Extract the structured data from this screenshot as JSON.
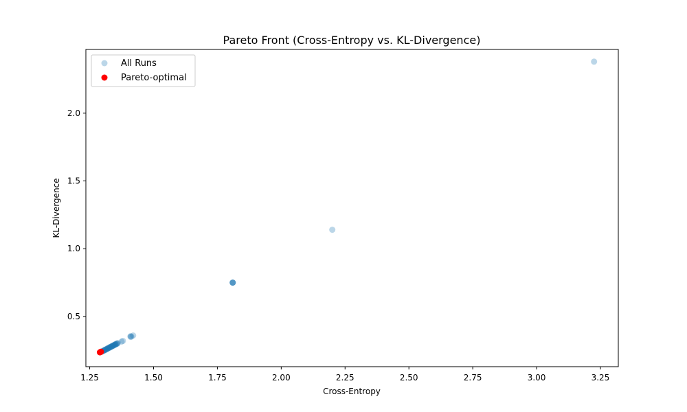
{
  "chart_data": {
    "type": "scatter",
    "title": "Pareto Front (Cross-Entropy vs. KL-Divergence)",
    "xlabel": "Cross-Entropy",
    "ylabel": "KL-Divergence",
    "xlim": [
      1.235,
      3.32
    ],
    "ylim": [
      0.13,
      2.47
    ],
    "xticks": [
      1.25,
      1.5,
      1.75,
      2.0,
      2.25,
      2.5,
      2.75,
      3.0,
      3.25
    ],
    "xtick_labels": [
      "1.25",
      "1.50",
      "1.75",
      "2.00",
      "2.25",
      "2.50",
      "2.75",
      "3.00",
      "3.25"
    ],
    "yticks": [
      0.5,
      1.0,
      1.5,
      2.0
    ],
    "ytick_labels": [
      "0.5",
      "1.0",
      "1.5",
      "2.0"
    ],
    "grid": false,
    "legend_position": "top-left",
    "series": [
      {
        "name": "All Runs",
        "color": "#1f77b4",
        "alpha": 0.3,
        "points": [
          [
            3.225,
            2.38
          ],
          [
            2.2,
            1.14
          ],
          [
            1.81,
            0.75
          ],
          [
            1.81,
            0.75
          ],
          [
            1.81,
            0.75
          ],
          [
            1.81,
            0.75
          ],
          [
            1.42,
            0.36
          ],
          [
            1.41,
            0.355
          ],
          [
            1.41,
            0.35
          ],
          [
            1.413,
            0.352
          ],
          [
            1.38,
            0.32
          ],
          [
            1.375,
            0.315
          ],
          [
            1.36,
            0.305
          ],
          [
            1.358,
            0.3
          ],
          [
            1.355,
            0.298
          ],
          [
            1.352,
            0.295
          ],
          [
            1.35,
            0.293
          ],
          [
            1.348,
            0.291
          ],
          [
            1.345,
            0.288
          ],
          [
            1.342,
            0.285
          ],
          [
            1.34,
            0.283
          ],
          [
            1.338,
            0.281
          ],
          [
            1.335,
            0.278
          ],
          [
            1.332,
            0.275
          ],
          [
            1.33,
            0.273
          ],
          [
            1.328,
            0.271
          ],
          [
            1.325,
            0.268
          ],
          [
            1.322,
            0.265
          ],
          [
            1.32,
            0.263
          ],
          [
            1.318,
            0.261
          ],
          [
            1.315,
            0.258
          ],
          [
            1.312,
            0.255
          ],
          [
            1.31,
            0.253
          ],
          [
            1.308,
            0.251
          ],
          [
            1.305,
            0.248
          ],
          [
            1.302,
            0.246
          ],
          [
            1.3,
            0.244
          ],
          [
            1.298,
            0.242
          ],
          [
            1.296,
            0.24
          ],
          [
            1.356,
            0.3
          ],
          [
            1.346,
            0.29
          ],
          [
            1.336,
            0.28
          ],
          [
            1.326,
            0.27
          ],
          [
            1.316,
            0.26
          ],
          [
            1.306,
            0.25
          ],
          [
            1.35,
            0.296
          ],
          [
            1.34,
            0.286
          ],
          [
            1.33,
            0.276
          ],
          [
            1.32,
            0.266
          ],
          [
            1.31,
            0.256
          ]
        ]
      },
      {
        "name": "Pareto-optimal",
        "color": "#ff0000",
        "alpha": 1.0,
        "points": [
          [
            1.292,
            0.238
          ],
          [
            1.29,
            0.236
          ],
          [
            1.294,
            0.24
          ]
        ]
      }
    ]
  }
}
